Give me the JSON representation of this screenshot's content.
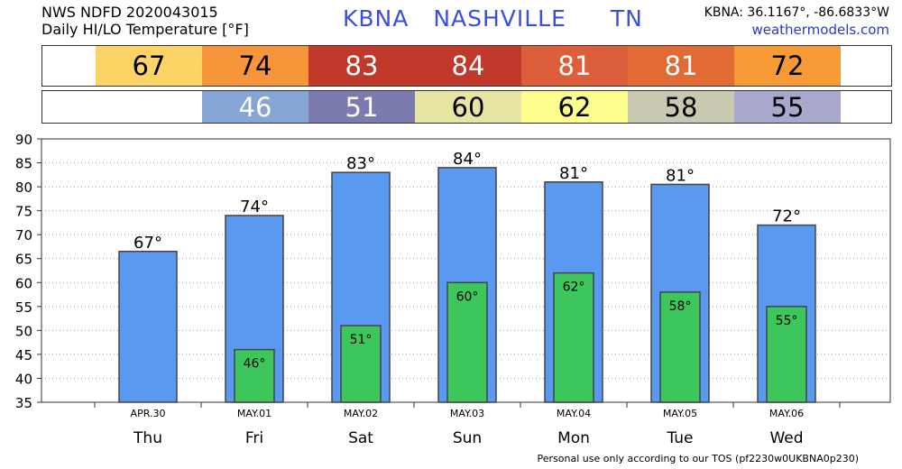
{
  "header": {
    "product": "NWS NDFD 2020043015",
    "subtitle": "Daily HI/LO Temperature [°F]",
    "station_id": "KBNA",
    "city": "NASHVILLE",
    "state": "TN",
    "coords": "KBNA: 36.1167°, -86.6833°W",
    "site": "weathermodels.com"
  },
  "footer": {
    "tos": "Personal use only according to our TOS (pf2230w0UKBNA0p230)"
  },
  "hi_row": {
    "cells": [
      {
        "text": "67",
        "color": "#fcd466",
        "textColor": "#000000"
      },
      {
        "text": "74",
        "color": "#f6953a",
        "textColor": "#000000"
      },
      {
        "text": "83",
        "color": "#c0392b",
        "textColor": "#ffffff"
      },
      {
        "text": "84",
        "color": "#c0392b",
        "textColor": "#ffffff"
      },
      {
        "text": "81",
        "color": "#dc5e3a",
        "textColor": "#ffffff"
      },
      {
        "text": "81",
        "color": "#e26b35",
        "textColor": "#ffffff"
      },
      {
        "text": "72",
        "color": "#f79a36",
        "textColor": "#000000"
      }
    ]
  },
  "lo_row": {
    "cells": [
      {
        "text": "",
        "color": "#ffffff",
        "textColor": "#000000"
      },
      {
        "text": "46",
        "color": "#85a6d4",
        "textColor": "#ffffff"
      },
      {
        "text": "51",
        "color": "#7c7bad",
        "textColor": "#ffffff"
      },
      {
        "text": "60",
        "color": "#e7e5a3",
        "textColor": "#000000"
      },
      {
        "text": "62",
        "color": "#fdfd8e",
        "textColor": "#000000"
      },
      {
        "text": "58",
        "color": "#c9c8b0",
        "textColor": "#000000"
      },
      {
        "text": "55",
        "color": "#a8a8cc",
        "textColor": "#000000"
      }
    ]
  },
  "chart_data": {
    "type": "bar",
    "categories": [
      "Thu",
      "Fri",
      "Sat",
      "Sun",
      "Mon",
      "Tue",
      "Wed"
    ],
    "dates": [
      "APR.30",
      "MAY.01",
      "MAY.02",
      "MAY.03",
      "MAY.04",
      "MAY.05",
      "MAY.06"
    ],
    "series": [
      {
        "values": [
          66.5,
          74,
          83,
          84,
          81,
          80.5,
          72
        ],
        "color": "#5999f2"
      },
      {
        "values": [
          null,
          46,
          51,
          60,
          62,
          58,
          55
        ],
        "color": "#3dc65c"
      }
    ],
    "hi_labels": [
      "67°",
      "74°",
      "83°",
      "84°",
      "81°",
      "81°",
      "72°"
    ],
    "lo_labels": [
      "",
      "46°",
      "51°",
      "60°",
      "62°",
      "58°",
      "55°"
    ],
    "ylim": [
      35,
      90
    ],
    "yticks": [
      35,
      40,
      45,
      50,
      55,
      60,
      65,
      70,
      75,
      80,
      85,
      90
    ],
    "grid": true,
    "xlabel": "",
    "ylabel": ""
  }
}
